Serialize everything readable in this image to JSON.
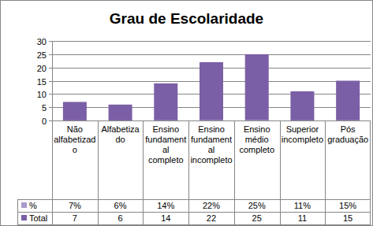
{
  "chart_data": {
    "type": "bar",
    "title": "Grau de Escolaridade",
    "categories": [
      "Não alfabetizado",
      "Alfabetizado",
      "Ensino fundamental completo",
      "Ensino fundamental incompleto",
      "Ensino médio completo",
      "Superior incompleto",
      "Pós graduação"
    ],
    "series": [
      {
        "name": "%",
        "color": "#a99bca",
        "values": [
          0.07,
          0.06,
          0.14,
          0.22,
          0.25,
          0.11,
          0.15
        ],
        "value_labels": [
          "7%",
          "6%",
          "14%",
          "22%",
          "25%",
          "11%",
          "15%"
        ]
      },
      {
        "name": "Total",
        "color": "#7b5fa6",
        "values": [
          7,
          6,
          14,
          22,
          25,
          11,
          15
        ]
      }
    ],
    "ylim": [
      0,
      30
    ],
    "yticks": [
      0,
      5,
      10,
      15,
      20,
      25,
      30
    ],
    "grid": true,
    "data_labels": true
  }
}
